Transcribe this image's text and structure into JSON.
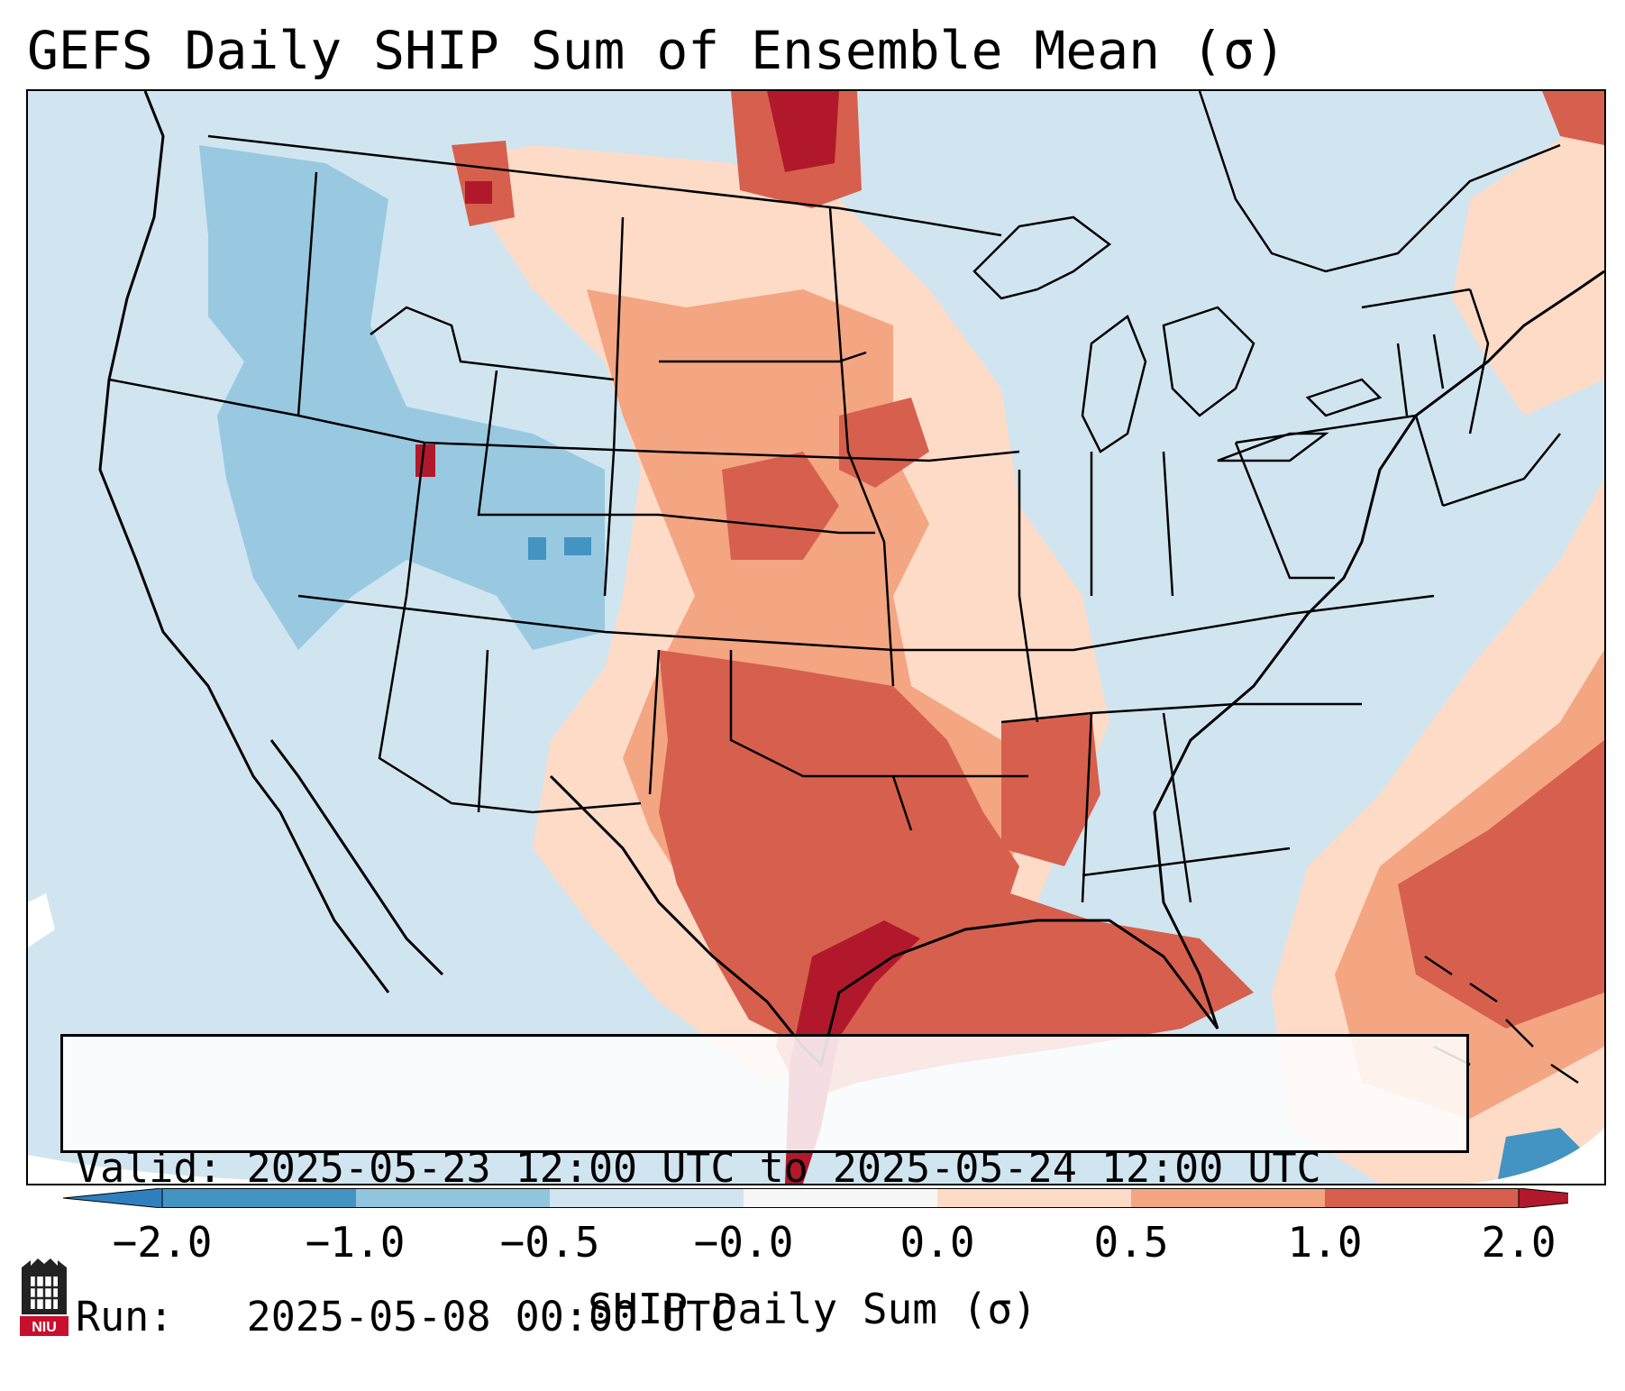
{
  "title": "GEFS Daily SHIP Sum of Ensemble Mean (σ)",
  "info": {
    "valid": "Valid: 2025-05-23 12:00 UTC to 2025-05-24 12:00 UTC",
    "run": "Run:   2025-05-08 00:00 UTC"
  },
  "colorbar": {
    "label": "SHIP Daily Sum (σ)",
    "ticks": [
      "−2.0",
      "−1.0",
      "−0.5",
      "−0.0",
      "0.0",
      "0.5",
      "1.0",
      "2.0"
    ],
    "colors": {
      "extend_low": "#2f7fbf",
      "bin1": "#4393c3",
      "bin2": "#92c5de",
      "bin3": "#d1e5f0",
      "bin4": "#f7f7f7",
      "bin5": "#fddbc7",
      "bin6": "#f4a582",
      "bin7": "#d6604d",
      "extend_high": "#b2182b"
    }
  },
  "logo": {
    "text": "NIU"
  }
}
